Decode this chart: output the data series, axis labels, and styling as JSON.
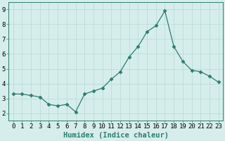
{
  "title": "",
  "xlabel": "Humidex (Indice chaleur)",
  "ylabel": "",
  "x": [
    0,
    1,
    2,
    3,
    4,
    5,
    6,
    7,
    8,
    9,
    10,
    11,
    12,
    13,
    14,
    15,
    16,
    17,
    18,
    19,
    20,
    21,
    22,
    23
  ],
  "y": [
    3.3,
    3.3,
    3.2,
    3.1,
    2.6,
    2.5,
    2.6,
    2.1,
    3.3,
    3.5,
    3.7,
    4.3,
    4.8,
    5.8,
    6.5,
    7.5,
    7.9,
    8.9,
    6.5,
    5.5,
    4.9,
    4.8,
    4.5,
    4.1
  ],
  "line_color": "#2e7d6e",
  "marker": "D",
  "marker_size": 2.5,
  "bg_color": "#d5eeeb",
  "grid_color": "#b8d8d4",
  "ylim": [
    1.5,
    9.5
  ],
  "xlim": [
    -0.5,
    23.5
  ],
  "yticks": [
    2,
    3,
    4,
    5,
    6,
    7,
    8,
    9
  ],
  "xticks": [
    0,
    1,
    2,
    3,
    4,
    5,
    6,
    7,
    8,
    9,
    10,
    11,
    12,
    13,
    14,
    15,
    16,
    17,
    18,
    19,
    20,
    21,
    22,
    23
  ],
  "tick_label_fontsize": 6.5,
  "xlabel_fontsize": 7.5,
  "axis_bg_color": "#d5eeeb",
  "border_color": "#2e7d6e"
}
